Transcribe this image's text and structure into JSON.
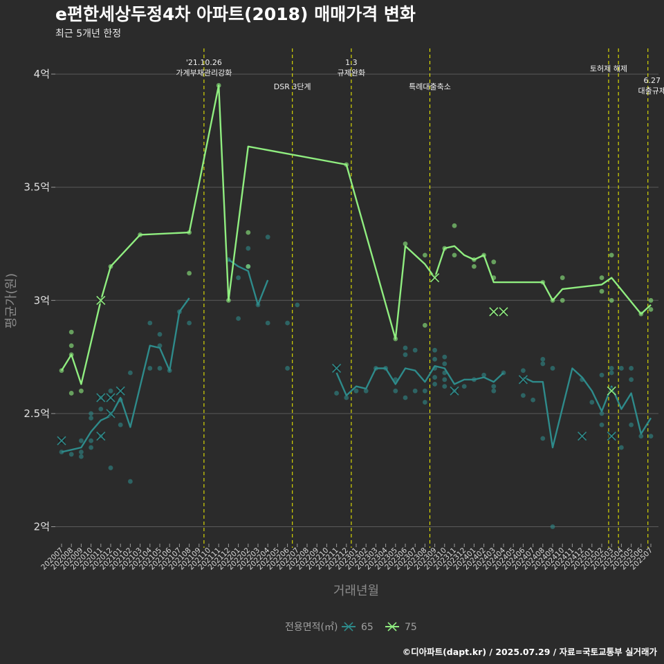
{
  "chart_data": {
    "type": "line",
    "title": "e편한세상두정4차 아파트(2018) 매매가격 변화",
    "subtitle": "최근 5개년 한정",
    "xlabel": "거래년월",
    "ylabel": "평균가(원)",
    "caption": "©디아파트(dapt.kr) / 2025.07.29 / 자료=국토교통부 실거래가",
    "legend_title": "전용면적(㎡)",
    "ylim": [
      1.9,
      4.2
    ],
    "yticks": [
      {
        "value": 2.0,
        "label": "2억"
      },
      {
        "value": 2.5,
        "label": "2.5억"
      },
      {
        "value": 3.0,
        "label": "3억"
      },
      {
        "value": 3.5,
        "label": "3.5억"
      },
      {
        "value": 4.0,
        "label": "4억"
      }
    ],
    "categories": [
      "202007",
      "202008",
      "202009",
      "202010",
      "202011",
      "202012",
      "202101",
      "202102",
      "202103",
      "202104",
      "202105",
      "202106",
      "202107",
      "202108",
      "202109",
      "202110",
      "202111",
      "202112",
      "202201",
      "202202",
      "202203",
      "202204",
      "202205",
      "202206",
      "202207",
      "202208",
      "202209",
      "202210",
      "202211",
      "202212",
      "202301",
      "202302",
      "202303",
      "202304",
      "202305",
      "202306",
      "202307",
      "202308",
      "202309",
      "202310",
      "202311",
      "202312",
      "202401",
      "202402",
      "202403",
      "202404",
      "202405",
      "202406",
      "202407",
      "202408",
      "202409",
      "202410",
      "202411",
      "202412",
      "202501",
      "202502",
      "202503",
      "202504",
      "202505",
      "202506",
      "202507"
    ],
    "events": [
      {
        "x": 14.5,
        "lines": [
          "'21.10.26",
          "가계부채관리강화"
        ],
        "y_pos": "high"
      },
      {
        "x": 23.5,
        "lines": [
          "DSR 3단계"
        ],
        "y_pos": "low"
      },
      {
        "x": 29.5,
        "lines": [
          "1.3",
          "규제완화"
        ],
        "y_pos": "high"
      },
      {
        "x": 37.5,
        "lines": [
          "특례대출축소"
        ],
        "y_pos": "low"
      },
      {
        "x": 55.7,
        "lines": [
          "토허제 해제"
        ],
        "y_pos": "mid"
      },
      {
        "x": 56.7,
        "lines": [],
        "y_pos": "none"
      },
      {
        "x": 59.7,
        "lines": [
          "6.27",
          "대출규제"
        ],
        "y_pos": "right"
      }
    ],
    "series": [
      {
        "name": "65",
        "color": "#2e8b8b",
        "line": [
          [
            0,
            2.33
          ],
          [
            1,
            2.34
          ],
          [
            2,
            2.35
          ],
          [
            3,
            2.42
          ],
          [
            4,
            2.47
          ],
          [
            5,
            2.49
          ],
          [
            6,
            2.57
          ],
          [
            7,
            2.44
          ],
          [
            8,
            2.62
          ],
          [
            9,
            2.8
          ],
          [
            10,
            2.79
          ],
          [
            11,
            2.69
          ],
          [
            12,
            2.95
          ],
          [
            13,
            3.01
          ],
          null,
          [
            17,
            3.18
          ],
          [
            18,
            3.15
          ],
          [
            19,
            3.13
          ],
          [
            20,
            2.98
          ],
          [
            21,
            3.09
          ],
          null,
          [
            28,
            2.68
          ],
          [
            29,
            2.58
          ],
          [
            30,
            2.62
          ],
          [
            31,
            2.61
          ],
          [
            32,
            2.7
          ],
          [
            33,
            2.7
          ],
          [
            34,
            2.63
          ],
          [
            35,
            2.7
          ],
          [
            36,
            2.69
          ],
          [
            37,
            2.64
          ],
          [
            38,
            2.71
          ],
          [
            39,
            2.7
          ],
          [
            40,
            2.63
          ],
          [
            41,
            2.65
          ],
          [
            42,
            2.65
          ],
          [
            43,
            2.66
          ],
          [
            44,
            2.64
          ],
          [
            45,
            2.68
          ],
          null,
          [
            47,
            2.66
          ],
          [
            48,
            2.64
          ],
          [
            49,
            2.64
          ],
          [
            50,
            2.35
          ],
          [
            52,
            2.7
          ],
          [
            53,
            2.66
          ],
          [
            54,
            2.6
          ],
          [
            55,
            2.51
          ],
          [
            56,
            2.62
          ],
          [
            57,
            2.52
          ],
          [
            58,
            2.59
          ],
          [
            59,
            2.41
          ],
          [
            60,
            2.48
          ]
        ],
        "points": [
          [
            0,
            2.33
          ],
          [
            1,
            2.32
          ],
          [
            2,
            2.31
          ],
          [
            2,
            2.33
          ],
          [
            2,
            2.38
          ],
          [
            3,
            2.35
          ],
          [
            3,
            2.38
          ],
          [
            3,
            2.48
          ],
          [
            3,
            2.5
          ],
          [
            4,
            2.4
          ],
          [
            4,
            2.52
          ],
          [
            4,
            2.57
          ],
          [
            5,
            2.26
          ],
          [
            5,
            2.5
          ],
          [
            5,
            2.6
          ],
          [
            6,
            2.45
          ],
          [
            6,
            2.56
          ],
          [
            7,
            2.2
          ],
          [
            7,
            2.68
          ],
          [
            9,
            2.9
          ],
          [
            9,
            2.7
          ],
          [
            10,
            2.85
          ],
          [
            10,
            2.8
          ],
          [
            10,
            2.7
          ],
          [
            11,
            2.69
          ],
          [
            12,
            2.95
          ],
          [
            13,
            2.9
          ],
          [
            17,
            3.18
          ],
          [
            18,
            3.1
          ],
          [
            18,
            2.92
          ],
          [
            19,
            3.15
          ],
          [
            19,
            3.23
          ],
          [
            20,
            2.98
          ],
          [
            21,
            3.28
          ],
          [
            21,
            2.9
          ],
          [
            23,
            2.9
          ],
          [
            23,
            2.7
          ],
          [
            24,
            2.98
          ],
          [
            28,
            2.59
          ],
          [
            29,
            2.57
          ],
          [
            30,
            2.6
          ],
          [
            31,
            2.6
          ],
          [
            32,
            2.7
          ],
          [
            33,
            2.7
          ],
          [
            34,
            2.6
          ],
          [
            34,
            2.65
          ],
          [
            35,
            2.79
          ],
          [
            35,
            2.76
          ],
          [
            35,
            2.57
          ],
          [
            36,
            2.78
          ],
          [
            36,
            2.6
          ],
          [
            37,
            2.6
          ],
          [
            37,
            2.55
          ],
          [
            38,
            2.78
          ],
          [
            38,
            2.74
          ],
          [
            38,
            2.7
          ],
          [
            38,
            2.66
          ],
          [
            38,
            2.63
          ],
          [
            39,
            2.75
          ],
          [
            39,
            2.72
          ],
          [
            39,
            2.68
          ],
          [
            39,
            2.65
          ],
          [
            39,
            2.62
          ],
          [
            40,
            2.6
          ],
          [
            41,
            2.62
          ],
          [
            42,
            2.65
          ],
          [
            43,
            2.67
          ],
          [
            44,
            2.62
          ],
          [
            44,
            2.6
          ],
          [
            45,
            2.68
          ],
          [
            47,
            2.69
          ],
          [
            47,
            2.58
          ],
          [
            48,
            2.56
          ],
          [
            49,
            2.74
          ],
          [
            49,
            2.72
          ],
          [
            49,
            2.39
          ],
          [
            50,
            2.7
          ],
          [
            50,
            2.0
          ],
          [
            53,
            2.65
          ],
          [
            54,
            2.55
          ],
          [
            55,
            2.67
          ],
          [
            55,
            2.5
          ],
          [
            55,
            2.45
          ],
          [
            56,
            2.7
          ],
          [
            56,
            2.68
          ],
          [
            57,
            2.7
          ],
          [
            57,
            2.35
          ],
          [
            58,
            2.7
          ],
          [
            58,
            2.65
          ],
          [
            58,
            2.45
          ],
          [
            59,
            2.4
          ],
          [
            60,
            2.4
          ]
        ],
        "cancelled": [
          [
            0,
            2.38
          ],
          [
            4,
            2.57
          ],
          [
            4,
            2.4
          ],
          [
            5,
            2.57
          ],
          [
            5,
            2.5
          ],
          [
            6,
            2.6
          ],
          [
            28,
            2.7
          ],
          [
            40,
            2.6
          ],
          [
            47,
            2.65
          ],
          [
            53,
            2.4
          ],
          [
            56,
            2.4
          ]
        ]
      },
      {
        "name": "75",
        "color": "#90ee80",
        "line": [
          [
            0,
            2.69
          ],
          [
            1,
            2.76
          ],
          [
            2,
            2.63
          ],
          [
            4,
            3.0
          ],
          [
            5,
            3.15
          ],
          [
            8,
            3.29
          ],
          [
            13,
            3.3
          ],
          [
            16,
            3.95
          ],
          [
            17,
            3.0
          ],
          [
            19,
            3.68
          ],
          [
            29,
            3.6
          ],
          [
            34,
            2.83
          ],
          [
            35,
            3.24
          ],
          [
            37,
            3.16
          ],
          [
            38,
            3.1
          ],
          [
            39,
            3.23
          ],
          [
            40,
            3.24
          ],
          [
            41,
            3.2
          ],
          [
            42,
            3.18
          ],
          [
            43,
            3.2
          ],
          [
            44,
            3.08
          ],
          [
            49,
            3.08
          ],
          [
            50,
            3.0
          ],
          [
            51,
            3.05
          ],
          [
            55,
            3.07
          ],
          [
            56,
            3.1
          ],
          [
            59,
            2.94
          ],
          [
            60,
            2.98
          ]
        ],
        "points": [
          [
            0,
            2.69
          ],
          [
            1,
            2.86
          ],
          [
            1,
            2.8
          ],
          [
            1,
            2.76
          ],
          [
            1,
            2.59
          ],
          [
            2,
            2.6
          ],
          [
            5,
            3.15
          ],
          [
            8,
            3.29
          ],
          [
            13,
            3.3
          ],
          [
            13,
            3.12
          ],
          [
            16,
            3.95
          ],
          [
            17,
            3.0
          ],
          [
            19,
            3.3
          ],
          [
            19,
            3.15
          ],
          [
            29,
            3.6
          ],
          [
            34,
            2.83
          ],
          [
            35,
            3.25
          ],
          [
            37,
            3.2
          ],
          [
            37,
            2.89
          ],
          [
            39,
            3.23
          ],
          [
            40,
            3.33
          ],
          [
            40,
            3.2
          ],
          [
            42,
            3.15
          ],
          [
            42,
            3.18
          ],
          [
            43,
            3.2
          ],
          [
            44,
            3.17
          ],
          [
            44,
            3.1
          ],
          [
            49,
            3.08
          ],
          [
            50,
            3.0
          ],
          [
            51,
            3.1
          ],
          [
            51,
            3.0
          ],
          [
            55,
            3.1
          ],
          [
            55,
            3.04
          ],
          [
            56,
            3.2
          ],
          [
            56,
            3.0
          ],
          [
            59,
            2.94
          ],
          [
            60,
            3.0
          ],
          [
            60,
            2.96
          ]
        ],
        "cancelled": [
          [
            4,
            3.0
          ],
          [
            38,
            3.1
          ],
          [
            44,
            2.95
          ],
          [
            45,
            2.95
          ],
          [
            56,
            2.6
          ]
        ]
      }
    ]
  }
}
